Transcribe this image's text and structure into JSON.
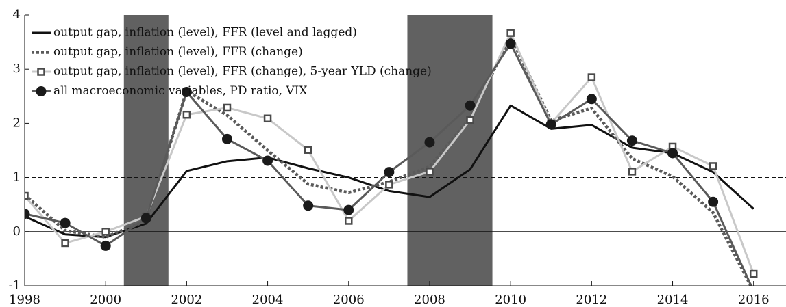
{
  "chart_data": {
    "type": "line",
    "x": [
      1998,
      1999,
      2000,
      2001,
      2002,
      2003,
      2004,
      2005,
      2006,
      2007,
      2008,
      2009,
      2010,
      2011,
      2012,
      2013,
      2014,
      2015,
      2016
    ],
    "xlim": [
      1998,
      2016.8
    ],
    "xticks": [
      1998,
      2000,
      2002,
      2004,
      2006,
      2008,
      2010,
      2012,
      2014,
      2016
    ],
    "ylim": [
      -1,
      4
    ],
    "yticks": [
      -1,
      0,
      1,
      2,
      3,
      4
    ],
    "shaded_regions": [
      [
        2000.45,
        2001.55
      ],
      [
        2007.45,
        2009.55
      ]
    ],
    "shade_color": "#616161",
    "hlines": [
      {
        "value": 0,
        "dash": "solid"
      },
      {
        "value": 1,
        "dash": "dashed"
      }
    ],
    "legend": "upper left",
    "series": [
      {
        "name": "output gap, inflation (level), FFR (level and lagged)",
        "color": "#111111",
        "dash": "solid",
        "marker": null,
        "values": [
          0.28,
          -0.05,
          -0.1,
          0.15,
          1.12,
          1.3,
          1.37,
          1.17,
          1.0,
          0.75,
          0.64,
          1.15,
          2.33,
          1.9,
          1.97,
          1.55,
          1.45,
          1.1,
          0.42
        ]
      },
      {
        "name": "output gap, inflation (level), FFR (change)",
        "color": "#5a5a5a",
        "dash": "dotted",
        "marker": null,
        "values": [
          0.68,
          0.02,
          -0.1,
          0.2,
          2.6,
          2.15,
          1.5,
          0.88,
          0.72,
          0.92,
          1.2,
          2.1,
          3.6,
          2.05,
          2.28,
          1.35,
          1.02,
          0.35,
          -1.1
        ]
      },
      {
        "name": "output gap, inflation (level), FFR (change), 5-year YLD (change)",
        "color": "#c8c8c8",
        "dash": "solid",
        "marker": "square",
        "marker_color": "#4a4a4a",
        "values": [
          0.66,
          -0.21,
          0.0,
          0.28,
          2.16,
          2.29,
          2.09,
          1.51,
          0.2,
          0.87,
          1.11,
          2.06,
          3.67,
          2.0,
          2.85,
          1.11,
          1.57,
          1.21,
          -0.78
        ]
      },
      {
        "name": "all macroeconomic variables, PD ratio, VIX",
        "color": "#5a5a5a",
        "dash": "solid",
        "marker": "circle",
        "marker_color": "#1a1a1a",
        "values": [
          0.33,
          0.16,
          -0.26,
          0.25,
          2.58,
          1.71,
          1.31,
          0.48,
          0.4,
          1.1,
          1.65,
          2.33,
          3.47,
          1.98,
          2.45,
          1.68,
          1.45,
          0.55,
          -1.1
        ]
      }
    ]
  }
}
